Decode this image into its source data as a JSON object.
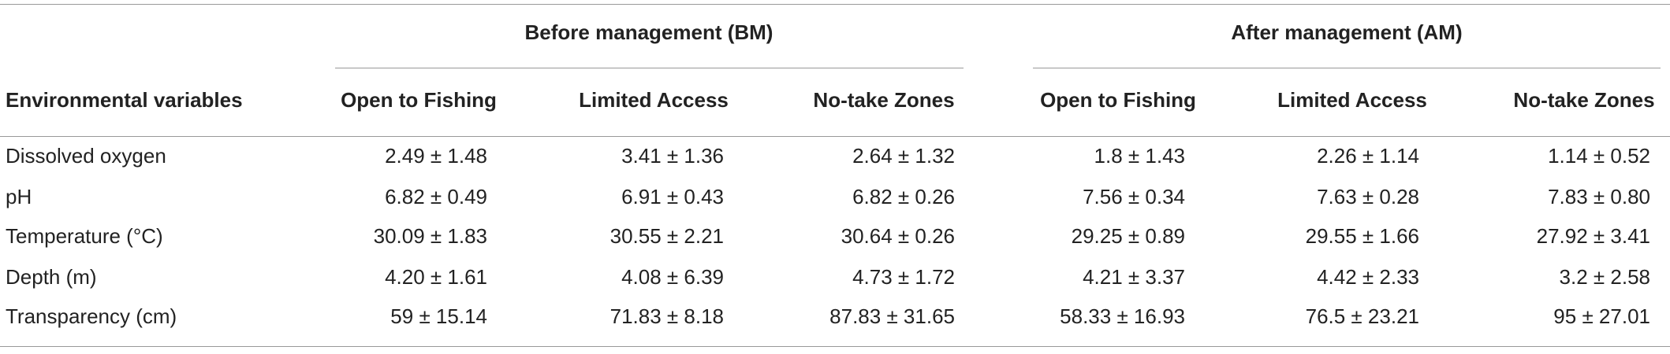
{
  "table": {
    "groups": [
      "Before management (BM)",
      "After management (AM)"
    ],
    "header": [
      "Environmental variables",
      "Open to Fishing",
      "Limited Access",
      "No-take Zones",
      "Open to Fishing",
      "Limited Access",
      "No-take Zones"
    ],
    "rows": [
      [
        "Dissolved oxygen",
        "2.49 ± 1.48",
        "3.41 ± 1.36",
        "2.64 ± 1.32",
        "1.8 ± 1.43",
        "2.26 ± 1.14",
        "1.14 ± 0.52"
      ],
      [
        "pH",
        "6.82 ± 0.49",
        "6.91 ± 0.43",
        "6.82 ± 0.26",
        "7.56 ± 0.34",
        "7.63 ± 0.28",
        "7.83 ± 0.80"
      ],
      [
        "Temperature (°C)",
        "30.09 ± 1.83",
        "30.55 ± 2.21",
        "30.64 ± 0.26",
        "29.25 ± 0.89",
        "29.55 ± 1.66",
        "27.92 ± 3.41"
      ],
      [
        "Depth (m)",
        "4.20 ± 1.61",
        "4.08 ± 6.39",
        "4.73 ± 1.72",
        "4.21 ± 3.37",
        "4.42 ± 2.33",
        "3.2 ± 2.58"
      ],
      [
        "Transparency (cm)",
        "59 ± 15.14",
        "71.83 ± 8.18",
        "87.83 ± 31.65",
        "58.33 ± 16.93",
        "76.5 ± 23.21",
        "95 ± 27.01"
      ]
    ]
  }
}
